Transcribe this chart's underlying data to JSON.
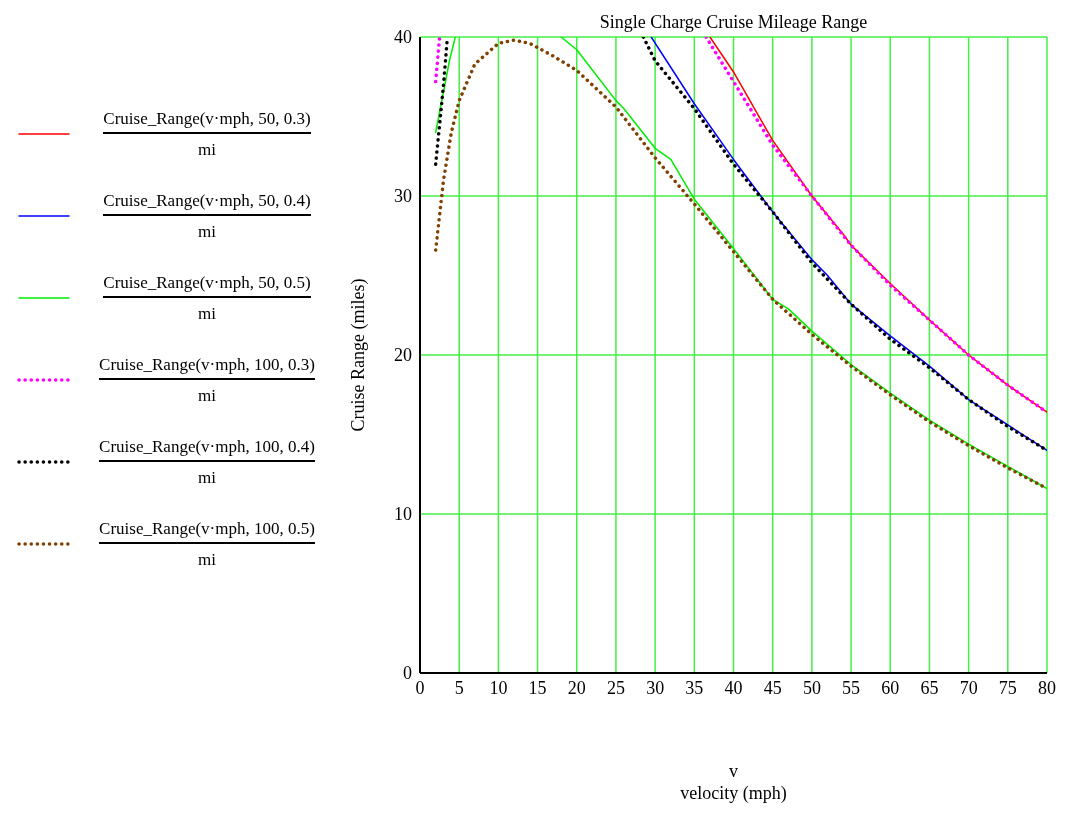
{
  "chart_data": {
    "type": "line",
    "title": "Single Charge Cruise Mileage Range",
    "xlabel": "v\nvelocity (mph)",
    "ylabel": "Cruise Range (miles)",
    "xlim": [
      0,
      80
    ],
    "xticks": [
      0,
      5,
      10,
      15,
      20,
      25,
      30,
      35,
      40,
      45,
      50,
      55,
      60,
      65,
      70,
      75,
      80
    ],
    "ylim": [
      0,
      40
    ],
    "yticks": [
      0,
      10,
      20,
      30,
      40
    ],
    "grid": true,
    "legend": "left",
    "marker": "none",
    "series": [
      {
        "name": "Cruise_Range(v·mph, 50, 0.3)\nmi",
        "color": "#ff0000",
        "line_style": "solid",
        "x": [
          37,
          40,
          45,
          50,
          54,
          55,
          60,
          65,
          70,
          75,
          80
        ],
        "values": [
          40,
          37.8,
          33.5,
          30,
          27.6,
          26.9,
          24.5,
          22.2,
          20,
          18.1,
          16.4
        ]
      },
      {
        "name": "Cruise_Range(v·mph, 50, 0.4)\nmi",
        "color": "#0000ff",
        "line_style": "solid",
        "x": [
          29.5,
          35,
          40,
          45,
          50,
          52,
          55,
          60,
          65,
          70,
          75,
          80
        ],
        "values": [
          40,
          35.8,
          32.3,
          29,
          26,
          25,
          23.2,
          21.2,
          19.3,
          17.2,
          15.6,
          14
        ]
      },
      {
        "name": "Cruise_Range(v·mph, 50, 0.5)\nmi",
        "color": "#00ee00",
        "line_style": "solid",
        "x": [
          2,
          3.8,
          4.5,
          10,
          18,
          20,
          25,
          26,
          30,
          32,
          35,
          40,
          45,
          47,
          50,
          55,
          60,
          65,
          70,
          75,
          80
        ],
        "values": [
          34,
          38.6,
          40,
          null,
          40,
          39.2,
          36,
          35.5,
          33,
          32.3,
          29.8,
          26.7,
          23.5,
          22.9,
          21.5,
          19.4,
          17.6,
          15.9,
          14.4,
          13,
          11.6
        ]
      },
      {
        "name": "Cruise_Range(v·mph, 100, 0.3)\nmi",
        "color": "#ff00ff",
        "line_style": "dotted",
        "x": [
          2,
          2.5,
          20,
          36.5,
          40,
          45,
          50,
          55,
          60,
          65,
          70,
          75,
          80
        ],
        "values": [
          37.2,
          40,
          null,
          40,
          37.2,
          33.2,
          30,
          26.9,
          24.4,
          22.2,
          20,
          18.1,
          16.4
        ]
      },
      {
        "name": "Cruise_Range(v·mph, 100, 0.4)\nmi",
        "color": "#000000",
        "line_style": "dotted",
        "x": [
          2,
          3,
          3.5,
          15,
          28.5,
          30,
          35,
          40,
          45,
          50,
          55,
          60,
          65,
          70,
          75,
          80
        ],
        "values": [
          32,
          37,
          40,
          null,
          40,
          38.5,
          35.5,
          32,
          29,
          25.8,
          23.2,
          21,
          19.2,
          17.2,
          15.5,
          14
        ]
      },
      {
        "name": "Cruise_Range(v·mph, 100, 0.5)\nmi",
        "color": "#804000",
        "line_style": "dotted",
        "x": [
          2,
          3,
          4,
          5,
          7,
          10,
          12,
          14,
          17,
          20,
          25,
          30,
          35,
          40,
          45,
          50,
          55,
          60,
          65,
          70,
          75,
          80
        ],
        "values": [
          26.6,
          31,
          34,
          36,
          38.3,
          39.6,
          39.8,
          39.6,
          38.8,
          37.9,
          35.6,
          32.4,
          29.5,
          26.5,
          23.5,
          21.3,
          19.3,
          17.5,
          15.8,
          14.3,
          12.9,
          11.6
        ]
      }
    ]
  }
}
